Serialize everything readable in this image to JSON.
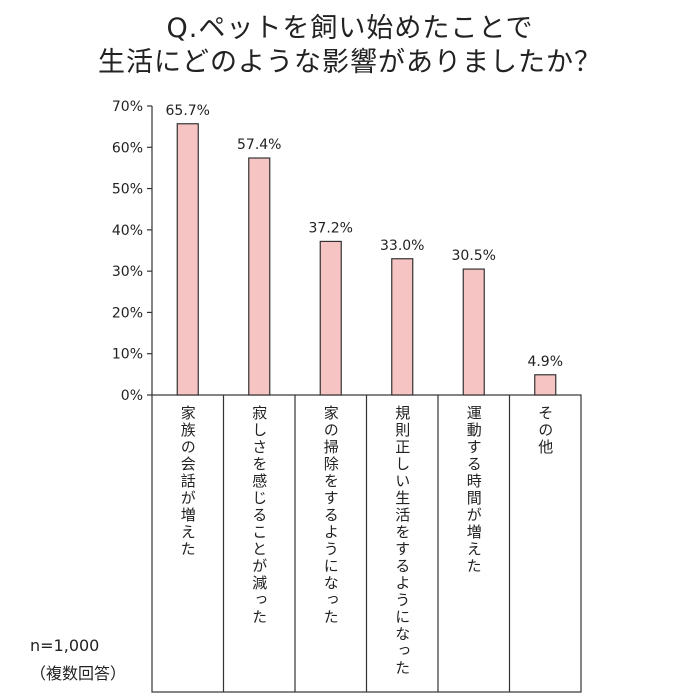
{
  "chart_data": {
    "type": "bar",
    "title_line1": "Q.ペットを飼い始めたことで",
    "title_line2": "生活にどのような影響がありましたか？",
    "categories": [
      "家族の会話が増えた",
      "寂しさを感じることが減った",
      "家の掃除をするようになった",
      "規則正しい生活をするようになった",
      "運動する時間が増えた",
      "その他"
    ],
    "values": [
      65.7,
      57.4,
      37.2,
      33.0,
      30.5,
      4.9
    ],
    "value_labels": [
      "65.7%",
      "57.4%",
      "37.2%",
      "33.0%",
      "30.5%",
      "4.9%"
    ],
    "y_ticks": [
      "0%",
      "10%",
      "20%",
      "30%",
      "40%",
      "50%",
      "60%",
      "70%"
    ],
    "ylim": [
      0,
      70
    ],
    "bar_color": "#f7c4c4",
    "grid": false
  },
  "note": {
    "sample": "n=1,000",
    "method": "（複数回答）"
  }
}
